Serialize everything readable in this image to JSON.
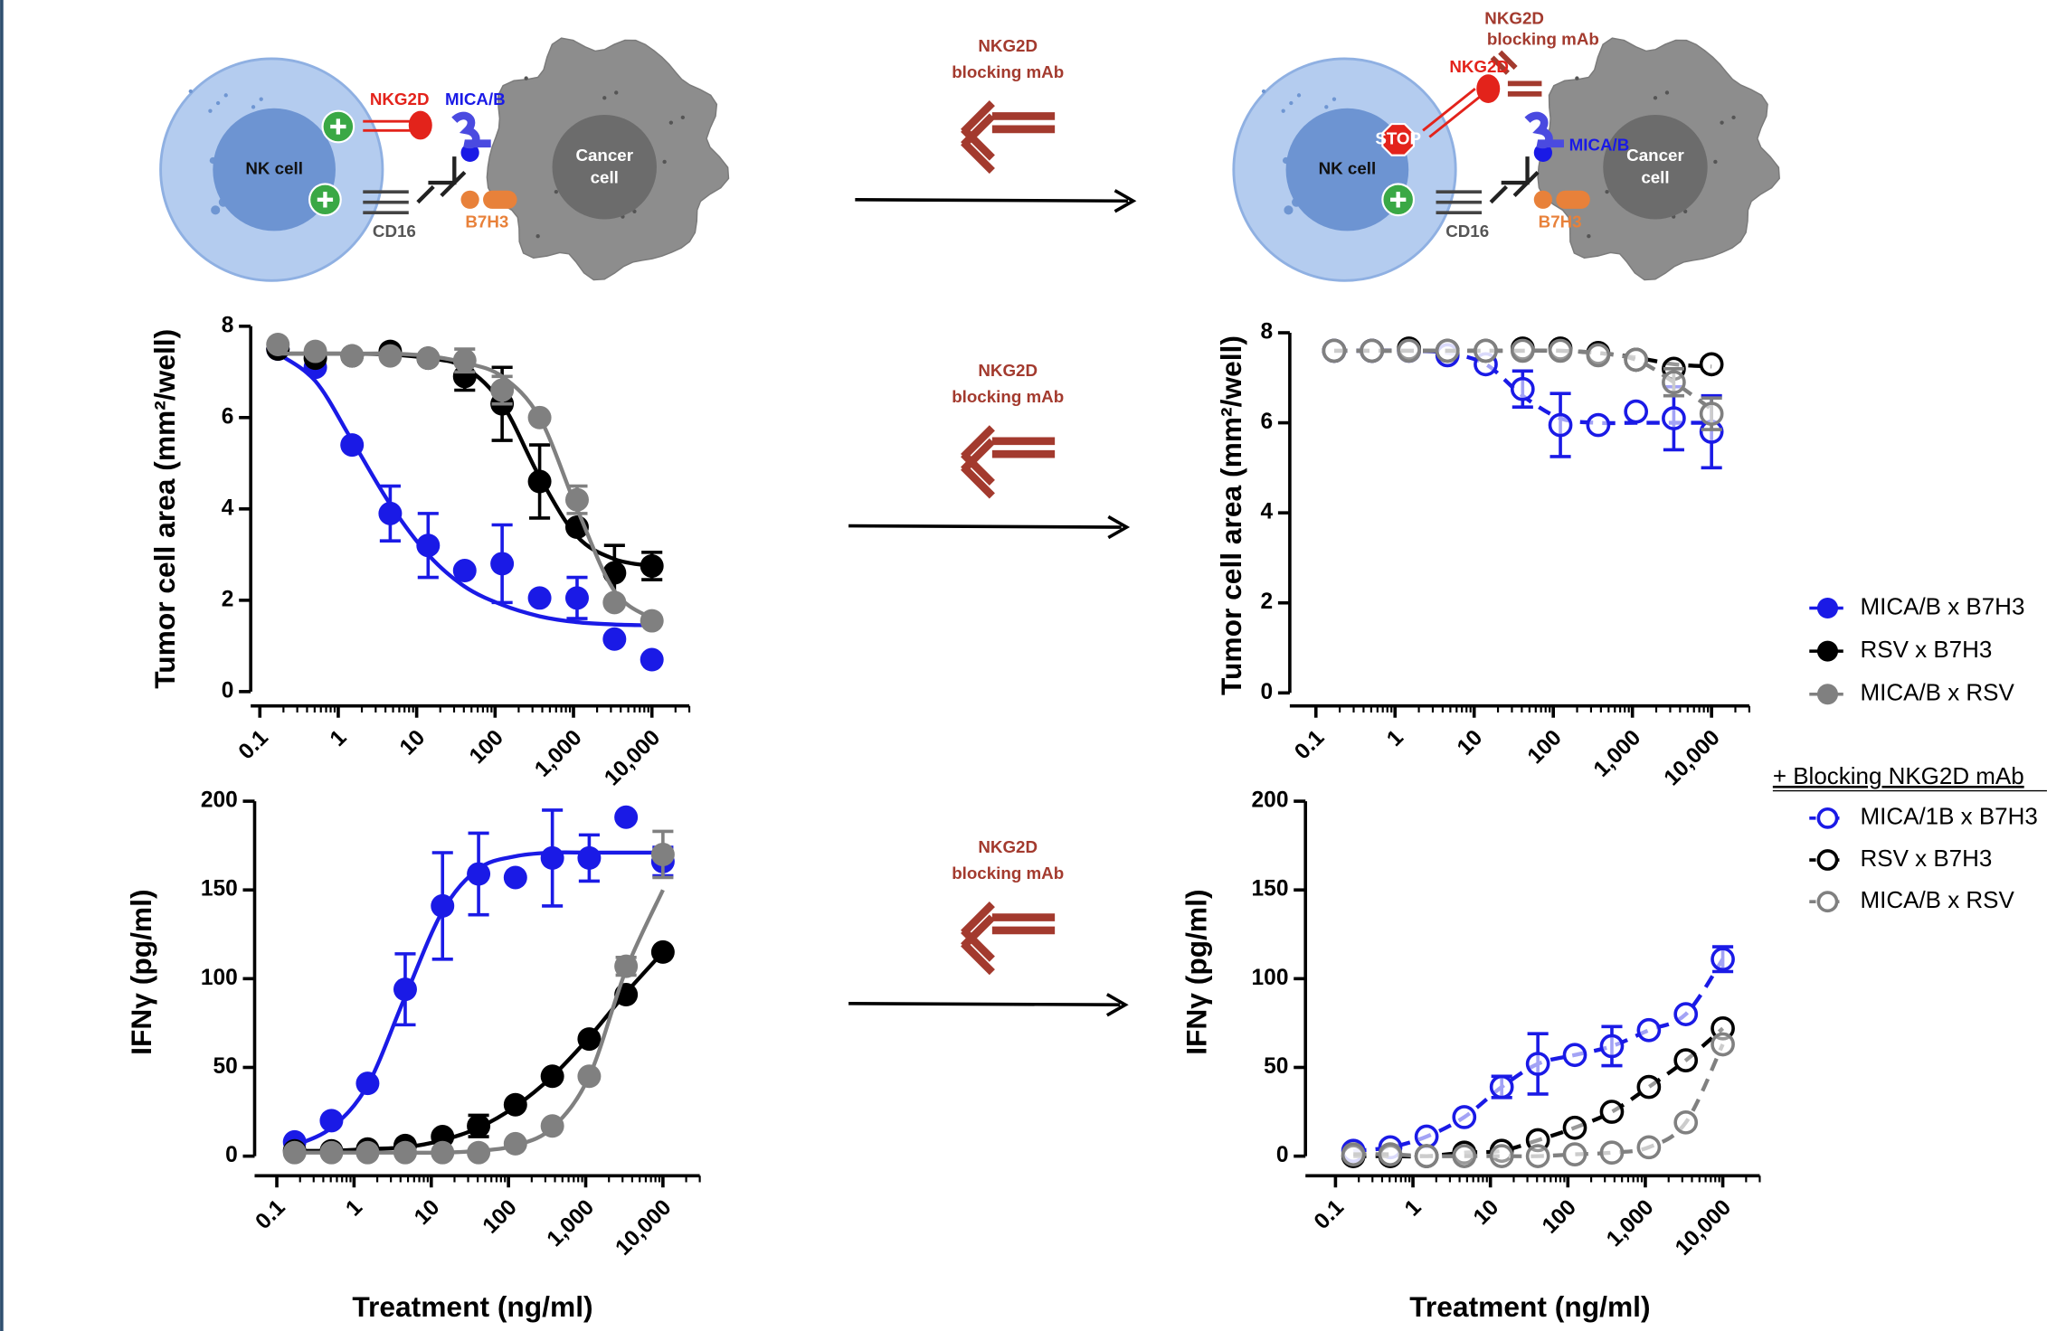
{
  "diagram_left": {
    "nk_cell": "NK cell",
    "cancer_cell": [
      "Cancer",
      "cell"
    ],
    "nkg2d": "NKG2D",
    "mica_b": "MICA/B",
    "cd16": "CD16",
    "b7h3": "B7H3"
  },
  "diagram_right": {
    "nk_cell": "NK cell",
    "cancer_cell": [
      "Cancer",
      "cell"
    ],
    "nkg2d": "NKG2D",
    "mica_b": "MICA/B",
    "cd16": "CD16",
    "b7h3": "B7H3",
    "stop": "STOP",
    "blocking_label": [
      "NKG2D",
      "blocking mAb"
    ]
  },
  "arrows": [
    {
      "label": [
        "NKG2D",
        "blocking mAb"
      ]
    },
    {
      "label": [
        "NKG2D",
        "blocking mAb"
      ]
    },
    {
      "label": [
        "NKG2D",
        "blocking mAb"
      ]
    }
  ],
  "chart_data": [
    {
      "type": "scatter",
      "y_label": "Tumor cell area (mm²/well)",
      "x_scale": "log",
      "x": [
        0.17,
        0.51,
        1.5,
        4.6,
        14,
        41,
        123,
        370,
        1111,
        3333,
        10000
      ],
      "xlim": [
        0.1,
        30000
      ],
      "xticks": [
        0.1,
        1,
        10,
        100,
        {
          "value": 1000,
          "label": "1,000"
        },
        {
          "value": 10000,
          "label": "10,000"
        }
      ],
      "ylim": [
        0,
        8
      ],
      "yticks": [
        0,
        2,
        4,
        6,
        8
      ],
      "series": [
        {
          "name": "MICA/B x B7H3",
          "color": "#1a1ae6",
          "marker": "filled",
          "values": [
            7.5,
            7.1,
            5.4,
            3.9,
            3.2,
            2.65,
            2.8,
            2.05,
            2.05,
            1.15,
            0.7
          ],
          "errors": [
            null,
            null,
            null,
            0.6,
            0.7,
            null,
            0.85,
            null,
            0.45,
            null,
            null
          ],
          "fit": [
            7.4,
            6.8,
            5.5,
            4.1,
            3.0,
            2.3,
            1.9,
            1.65,
            1.52,
            1.47,
            1.45
          ]
        },
        {
          "name": "RSV x B7H3",
          "color": "#000000",
          "marker": "filled",
          "values": [
            7.5,
            7.3,
            7.35,
            7.45,
            7.3,
            6.9,
            6.3,
            4.6,
            3.6,
            2.6,
            2.75
          ],
          "errors": [
            null,
            null,
            null,
            null,
            null,
            0.3,
            0.8,
            0.8,
            null,
            0.6,
            0.3
          ],
          "fit": [
            7.4,
            7.4,
            7.4,
            7.38,
            7.3,
            7.1,
            6.3,
            4.7,
            3.4,
            2.9,
            2.75
          ]
        },
        {
          "name": "MICA/B x RSV",
          "color": "#808080",
          "marker": "filled",
          "values": [
            7.6,
            7.45,
            7.35,
            7.35,
            7.3,
            7.25,
            6.6,
            6.0,
            4.2,
            1.95,
            1.55
          ],
          "errors": [
            null,
            null,
            null,
            null,
            null,
            0.25,
            0.3,
            null,
            0.3,
            null,
            null
          ],
          "fit": [
            7.4,
            7.4,
            7.4,
            7.4,
            7.35,
            7.2,
            6.9,
            6.0,
            4.0,
            2.2,
            1.6
          ]
        }
      ]
    },
    {
      "type": "scatter",
      "y_label": "Tumor cell area (mm²/well)",
      "x_scale": "log",
      "legend_title": "+ Blocking NKG2D mAb",
      "x": [
        0.17,
        0.51,
        1.5,
        4.6,
        14,
        41,
        123,
        370,
        1111,
        3333,
        10000
      ],
      "xlim": [
        0.1,
        30000
      ],
      "xticks": [
        0.1,
        1,
        10,
        100,
        {
          "value": 1000,
          "label": "1,000"
        },
        {
          "value": 10000,
          "label": "10,000"
        }
      ],
      "ylim": [
        0,
        8
      ],
      "yticks": [
        0,
        2,
        4,
        6,
        8
      ],
      "series": [
        {
          "name": "MICA/1B x B7H3",
          "color": "#1a1ae6",
          "marker": "open",
          "dash": true,
          "values": [
            7.6,
            7.6,
            7.6,
            7.5,
            7.3,
            6.75,
            5.95,
            5.95,
            6.25,
            6.1,
            5.8
          ],
          "errors": [
            null,
            null,
            null,
            null,
            null,
            0.4,
            0.7,
            null,
            null,
            0.7,
            0.8
          ],
          "fit": [
            7.6,
            7.6,
            7.6,
            7.55,
            7.3,
            6.6,
            6.1,
            6.0,
            6.0,
            6.0,
            6.0
          ]
        },
        {
          "name": "RSV x B7H3",
          "color": "#000000",
          "marker": "open",
          "dash": true,
          "values": [
            7.6,
            7.6,
            7.65,
            7.6,
            7.6,
            7.65,
            7.65,
            7.55,
            7.4,
            7.2,
            7.3
          ],
          "errors": [
            null,
            null,
            null,
            null,
            null,
            null,
            null,
            null,
            null,
            null,
            null
          ],
          "fit": [
            7.6,
            7.6,
            7.6,
            7.6,
            7.6,
            7.6,
            7.6,
            7.55,
            7.45,
            7.3,
            7.25
          ]
        },
        {
          "name": "MICA/B x RSV",
          "color": "#808080",
          "marker": "open",
          "dash": true,
          "values": [
            7.6,
            7.6,
            7.6,
            7.6,
            7.6,
            7.6,
            7.6,
            7.5,
            7.4,
            6.9,
            6.2
          ],
          "errors": [
            null,
            null,
            null,
            null,
            null,
            null,
            null,
            null,
            null,
            0.3,
            0.35
          ],
          "fit": [
            7.6,
            7.6,
            7.6,
            7.6,
            7.6,
            7.6,
            7.6,
            7.55,
            7.4,
            6.9,
            6.3
          ]
        }
      ]
    },
    {
      "type": "scatter",
      "y_label": "IFNγ (pg/ml)",
      "x_label": "Treatment (ng/ml)",
      "x_scale": "log",
      "x": [
        0.17,
        0.51,
        1.5,
        4.6,
        14,
        41,
        123,
        370,
        1111,
        3333,
        10000
      ],
      "xlim": [
        0.1,
        30000
      ],
      "xticks": [
        0.1,
        1,
        10,
        100,
        {
          "value": 1000,
          "label": "1,000"
        },
        {
          "value": 10000,
          "label": "10,000"
        }
      ],
      "ylim": [
        0,
        200
      ],
      "yticks": [
        0,
        50,
        100,
        150,
        200
      ],
      "series": [
        {
          "color": "#1a1ae6",
          "marker": "filled",
          "values": [
            8,
            20,
            41,
            94,
            141,
            159,
            157,
            168,
            168,
            191,
            166
          ],
          "errors": [
            null,
            null,
            null,
            20,
            30,
            23,
            null,
            27,
            13,
            null,
            8
          ],
          "fit": [
            6,
            16,
            40,
            90,
            138,
            162,
            169,
            171,
            171,
            171,
            171
          ]
        },
        {
          "color": "#000000",
          "marker": "filled",
          "values": [
            3,
            3,
            4,
            6,
            11,
            17,
            29,
            45,
            66,
            91,
            115
          ],
          "errors": [
            null,
            null,
            null,
            null,
            null,
            6,
            null,
            null,
            null,
            null,
            null
          ],
          "fit": [
            3,
            3,
            4,
            5,
            9,
            16,
            28,
            45,
            67,
            92,
            115
          ]
        },
        {
          "color": "#808080",
          "marker": "filled",
          "values": [
            2,
            2,
            2,
            2,
            2,
            2,
            7,
            17,
            45,
            107,
            170
          ],
          "errors": [
            null,
            null,
            null,
            null,
            null,
            null,
            null,
            null,
            null,
            5,
            13
          ],
          "fit": [
            2,
            2,
            2,
            2,
            2,
            3,
            6,
            16,
            45,
            105,
            150
          ]
        }
      ]
    },
    {
      "type": "scatter",
      "y_label": "IFNγ (pg/ml)",
      "x_label": "Treatment (ng/ml)",
      "x_scale": "log",
      "x": [
        0.17,
        0.51,
        1.5,
        4.6,
        14,
        41,
        123,
        370,
        1111,
        3333,
        10000
      ],
      "xlim": [
        0.1,
        30000
      ],
      "xticks": [
        0.1,
        1,
        10,
        100,
        {
          "value": 1000,
          "label": "1,000"
        },
        {
          "value": 10000,
          "label": "10,000"
        }
      ],
      "ylim": [
        0,
        200
      ],
      "yticks": [
        0,
        50,
        100,
        150,
        200
      ],
      "series": [
        {
          "color": "#1a1ae6",
          "marker": "open",
          "dash": true,
          "values": [
            3,
            5,
            11,
            22,
            39,
            52,
            57,
            62,
            71,
            80,
            111
          ],
          "errors": [
            null,
            null,
            null,
            null,
            6,
            17,
            null,
            11,
            null,
            null,
            7
          ]
        },
        {
          "color": "#000000",
          "marker": "open",
          "dash": true,
          "values": [
            0,
            0,
            0,
            2,
            3,
            9,
            16,
            25,
            39,
            54,
            72
          ],
          "errors": [
            null,
            null,
            null,
            null,
            null,
            null,
            null,
            null,
            null,
            null,
            null
          ]
        },
        {
          "color": "#808080",
          "marker": "open",
          "dash": true,
          "values": [
            1,
            1,
            0,
            0,
            0,
            0,
            1,
            2,
            5,
            19,
            63
          ],
          "errors": [
            null,
            null,
            null,
            null,
            null,
            null,
            null,
            null,
            null,
            null,
            null
          ]
        }
      ]
    }
  ]
}
